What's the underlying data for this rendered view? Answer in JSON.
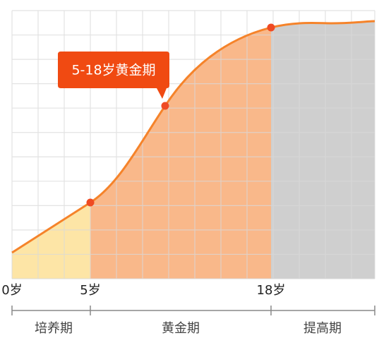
{
  "callout": "5-18岁黄金期",
  "ages": [
    "0岁",
    "5岁",
    "18岁"
  ],
  "periods": [
    "培养期",
    "黄金期",
    "提高期"
  ]
}
